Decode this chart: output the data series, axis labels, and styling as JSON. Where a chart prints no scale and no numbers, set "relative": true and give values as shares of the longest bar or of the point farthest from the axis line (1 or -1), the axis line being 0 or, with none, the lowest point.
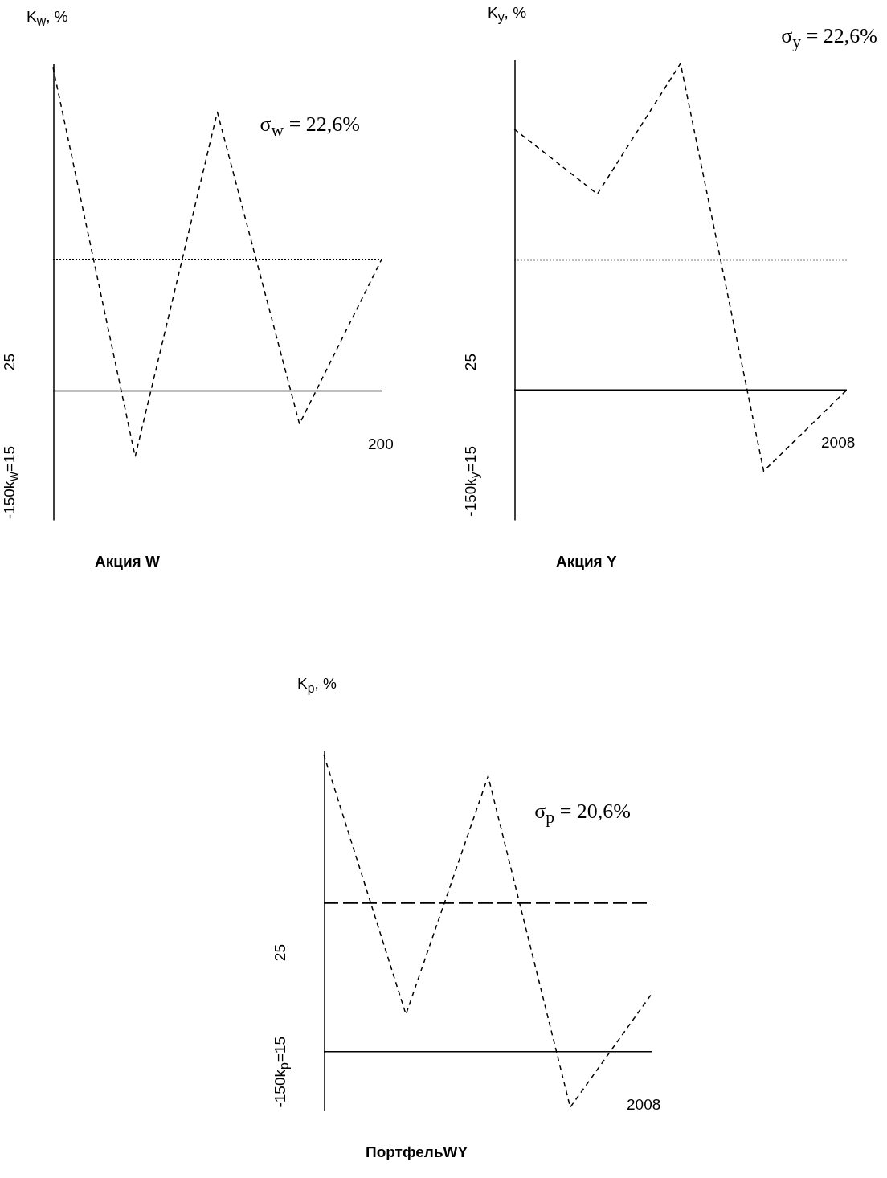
{
  "chart_data": [
    {
      "type": "line",
      "title": "Акция W",
      "ylabel": "K$_{w}$, %",
      "relative": true,
      "categories": [
        null,
        null,
        null,
        null,
        null
      ],
      "line_style": "dashed",
      "marker": "none",
      "legend": false,
      "grid": false,
      "series": [
        {
          "color": "#000000",
          "values": [
            1,
            -0.203,
            0.862,
            -0.102,
            0.407
          ]
        }
      ],
      "ref_lines": [
        {
          "axis": "y",
          "value": 0.407,
          "color": "#000000",
          "line_style": "dotted"
        }
      ],
      "annotations": [
        "σ$_{w}$ = 22,6%",
        "200",
        "-150k$_{w}$=15",
        "25"
      ]
    },
    {
      "type": "line",
      "title": "Акция Y",
      "ylabel": "K$_{y}$, %",
      "relative": true,
      "categories": [
        null,
        null,
        null,
        null,
        null
      ],
      "line_style": "dashed",
      "marker": "none",
      "legend": false,
      "grid": false,
      "series": [
        {
          "color": "#000000",
          "values": [
            0.799,
            0.6,
            1,
            -0.249,
            0
          ]
        }
      ],
      "ref_lines": [
        {
          "axis": "y",
          "value": 0.398,
          "color": "#000000",
          "line_style": "dotted"
        }
      ],
      "annotations": [
        "σ$_{y}$ = 22,6%",
        "2008",
        "-150k$_{y}$=15",
        "25"
      ]
    },
    {
      "type": "line",
      "title": "ПортфельWY",
      "ylabel": "K$_{p}$, %",
      "relative": true,
      "categories": [
        null,
        null,
        null,
        null,
        null
      ],
      "line_style": "dashed",
      "marker": "none",
      "legend": false,
      "grid": false,
      "series": [
        {
          "color": "#000000",
          "values": [
            1,
            0.125,
            0.927,
            -0.1875,
            0.198
          ]
        }
      ],
      "ref_lines": [
        {
          "axis": "y",
          "value": 0.5,
          "color": "#000000",
          "line_style": "dashed"
        }
      ],
      "annotations": [
        "σ$_{p}$ = 20,6%",
        "2008",
        "-150k$_{p}$=15",
        "25"
      ]
    }
  ]
}
